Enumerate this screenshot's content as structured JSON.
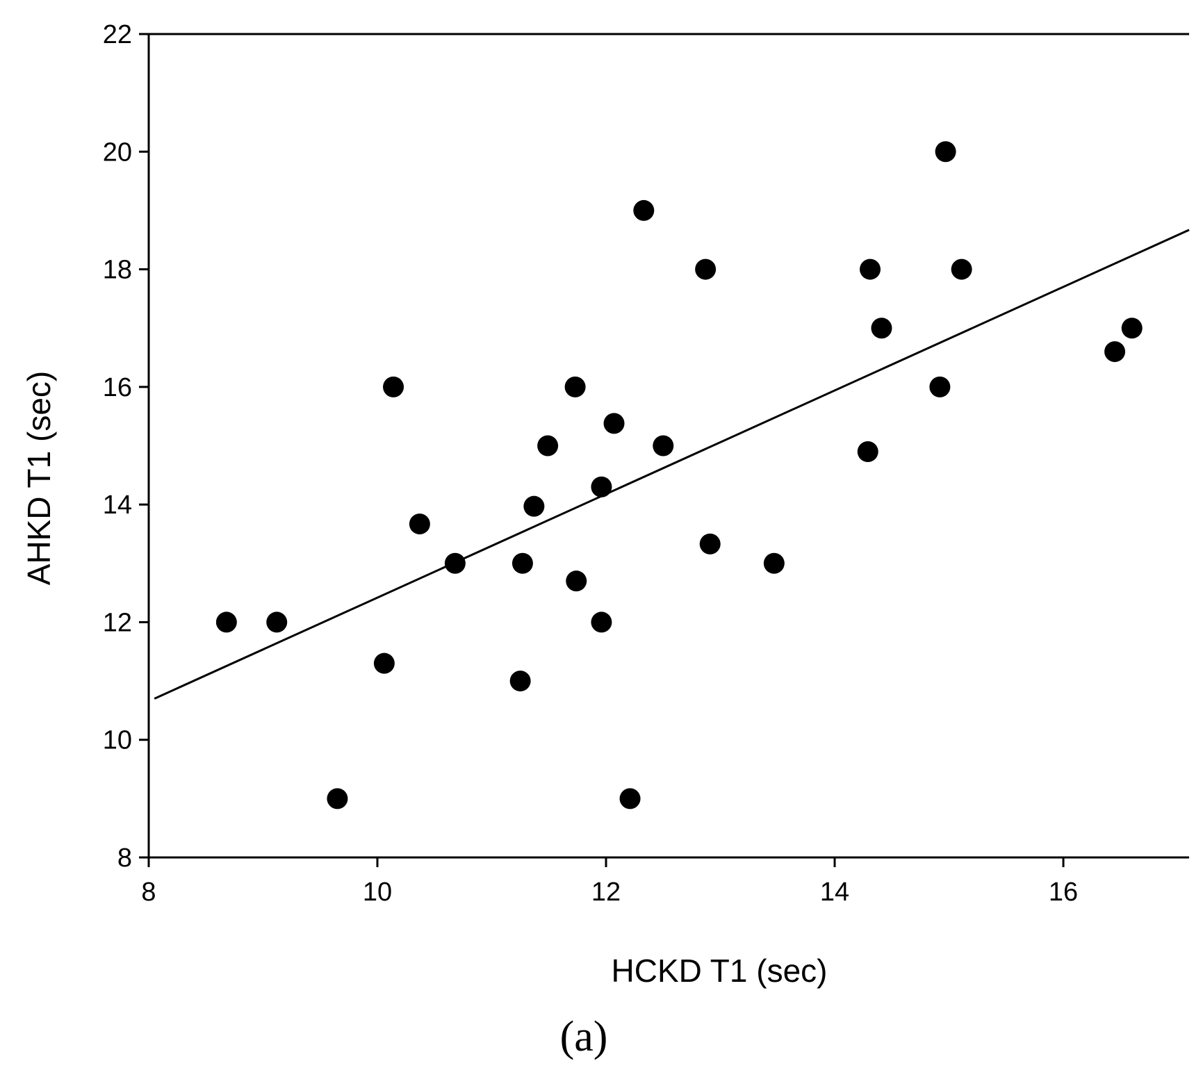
{
  "chart_data": {
    "type": "scatter",
    "xlabel": "HCKD T1 (sec)",
    "ylabel": "AHKD T1 (sec)",
    "caption": "(a)",
    "xlim": [
      8,
      17.1
    ],
    "ylim": [
      8,
      22
    ],
    "xticks": [
      8,
      10,
      12,
      14,
      16
    ],
    "yticks": [
      8,
      10,
      12,
      14,
      16,
      18,
      20,
      22
    ],
    "grid": false,
    "marker_color": "#000000",
    "points": [
      {
        "x": 8.68,
        "y": 12.0
      },
      {
        "x": 9.12,
        "y": 12.0
      },
      {
        "x": 9.65,
        "y": 9.0
      },
      {
        "x": 10.06,
        "y": 11.3
      },
      {
        "x": 10.14,
        "y": 16.0
      },
      {
        "x": 10.37,
        "y": 13.67
      },
      {
        "x": 10.68,
        "y": 13.0
      },
      {
        "x": 11.25,
        "y": 11.0
      },
      {
        "x": 11.27,
        "y": 13.0
      },
      {
        "x": 11.37,
        "y": 13.97
      },
      {
        "x": 11.49,
        "y": 15.0
      },
      {
        "x": 11.73,
        "y": 16.0
      },
      {
        "x": 11.74,
        "y": 12.7
      },
      {
        "x": 11.96,
        "y": 14.3
      },
      {
        "x": 11.96,
        "y": 12.0
      },
      {
        "x": 12.07,
        "y": 15.38
      },
      {
        "x": 12.21,
        "y": 9.0
      },
      {
        "x": 12.33,
        "y": 19.0
      },
      {
        "x": 12.5,
        "y": 15.0
      },
      {
        "x": 12.87,
        "y": 18.0
      },
      {
        "x": 12.91,
        "y": 13.33
      },
      {
        "x": 13.47,
        "y": 13.0
      },
      {
        "x": 14.29,
        "y": 14.9
      },
      {
        "x": 14.31,
        "y": 18.0
      },
      {
        "x": 14.41,
        "y": 17.0
      },
      {
        "x": 14.92,
        "y": 16.0
      },
      {
        "x": 14.97,
        "y": 20.0
      },
      {
        "x": 15.11,
        "y": 18.0
      },
      {
        "x": 16.45,
        "y": 16.6
      },
      {
        "x": 16.6,
        "y": 17.0
      }
    ],
    "fit_line": {
      "x": [
        8.05,
        17.1
      ],
      "y": [
        10.7,
        18.67
      ]
    }
  }
}
